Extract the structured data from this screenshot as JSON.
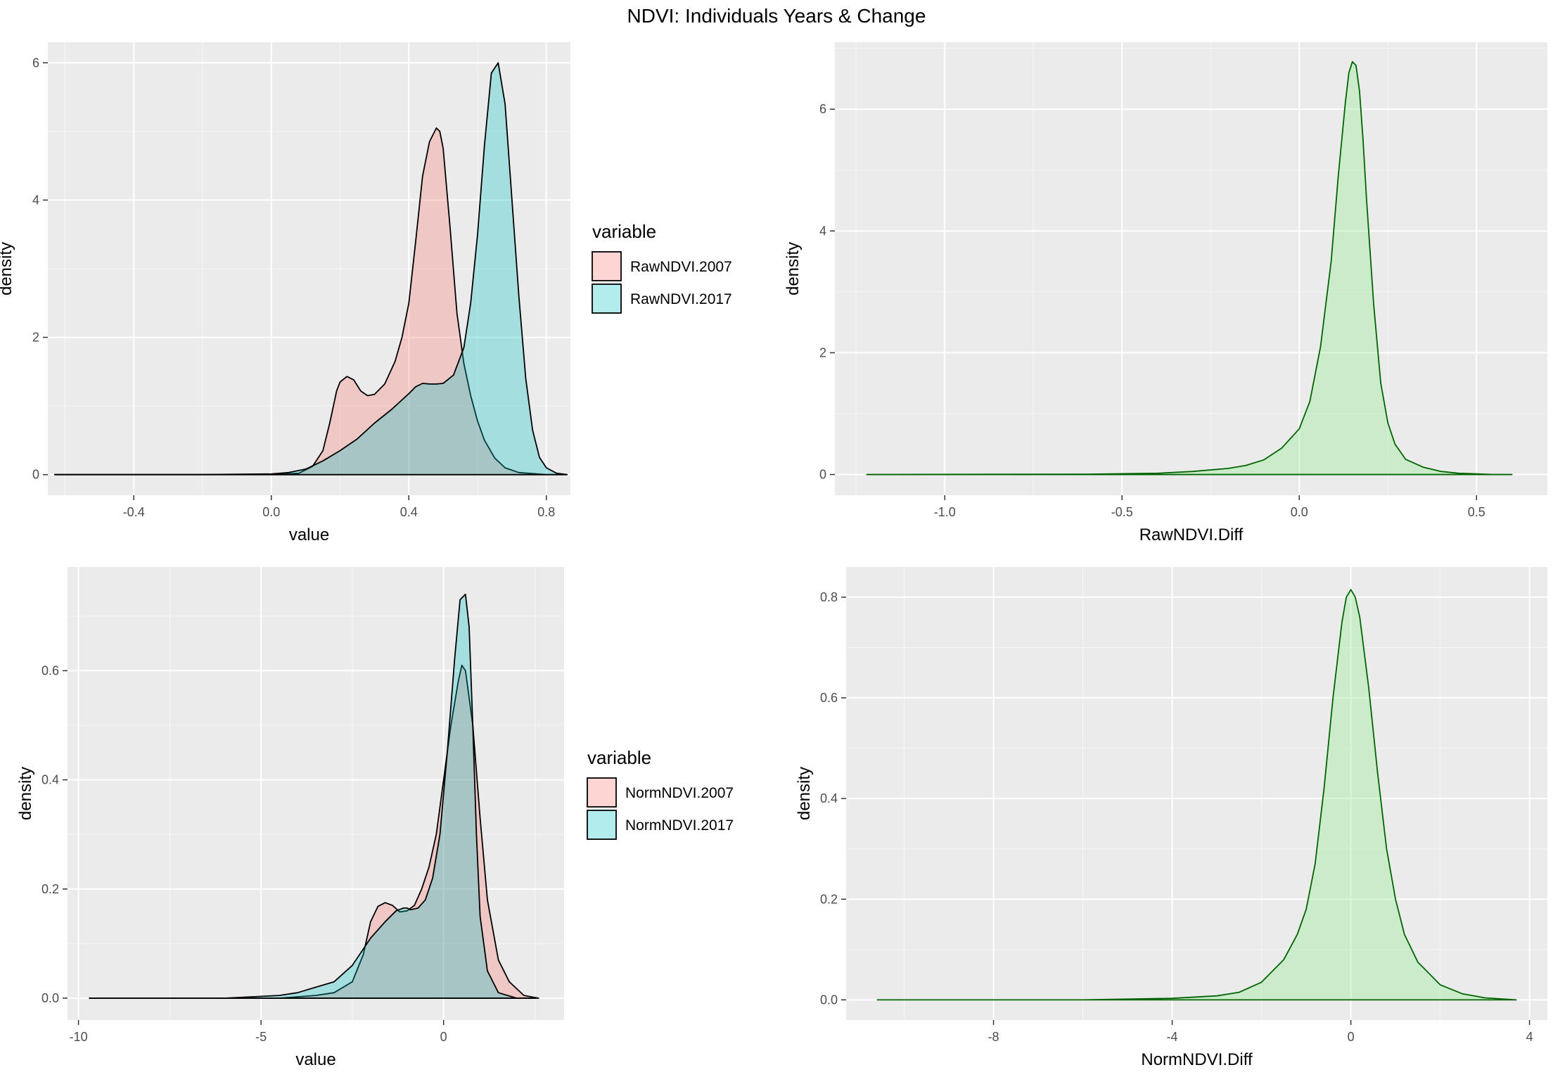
{
  "title": "NDVI: Individuals Years & Change",
  "colors": {
    "panel_bg": "#EBEBEB",
    "grid_major": "#FFFFFF",
    "series_2007": "#F8766D",
    "series_2017": "#00BFC4",
    "diff_fill": "#90EE90",
    "diff_line": "#006400",
    "outline": "#000000",
    "tick_text": "#4D4D4D"
  },
  "chart_data": [
    {
      "type": "area",
      "panel": "top-left",
      "xlabel": "value",
      "ylabel": "density",
      "xlim": [
        -0.65,
        0.87
      ],
      "ylim": [
        -0.3,
        6.3
      ],
      "x_ticks": [
        -0.4,
        0.0,
        0.4,
        0.8
      ],
      "x_tick_labels": [
        "-0.4",
        "0.0",
        "0.4",
        "0.8"
      ],
      "y_ticks": [
        0,
        2,
        4,
        6
      ],
      "y_tick_labels": [
        "0",
        "2",
        "4",
        "6"
      ],
      "legend": {
        "title": "variable",
        "position": "right",
        "entries": [
          "RawNDVI.2007",
          "RawNDVI.2017"
        ]
      },
      "series": [
        {
          "name": "RawNDVI.2007",
          "x": [
            -0.63,
            -0.2,
            0.0,
            0.08,
            0.12,
            0.15,
            0.17,
            0.19,
            0.2,
            0.22,
            0.24,
            0.26,
            0.28,
            0.3,
            0.33,
            0.36,
            0.38,
            0.4,
            0.42,
            0.44,
            0.46,
            0.48,
            0.49,
            0.5,
            0.52,
            0.54,
            0.56,
            0.58,
            0.6,
            0.62,
            0.65,
            0.68,
            0.72,
            0.8,
            0.86
          ],
          "values": [
            0,
            0,
            0.0,
            0.02,
            0.12,
            0.35,
            0.75,
            1.22,
            1.35,
            1.43,
            1.38,
            1.22,
            1.15,
            1.17,
            1.32,
            1.65,
            2.0,
            2.5,
            3.4,
            4.35,
            4.85,
            5.05,
            5.0,
            4.75,
            3.6,
            2.35,
            1.62,
            1.15,
            0.78,
            0.5,
            0.24,
            0.1,
            0.03,
            0.0,
            0
          ]
        },
        {
          "name": "RawNDVI.2017",
          "x": [
            -0.63,
            -0.2,
            0.0,
            0.05,
            0.1,
            0.15,
            0.2,
            0.25,
            0.3,
            0.35,
            0.4,
            0.42,
            0.44,
            0.46,
            0.48,
            0.5,
            0.53,
            0.56,
            0.58,
            0.6,
            0.62,
            0.64,
            0.66,
            0.68,
            0.7,
            0.72,
            0.74,
            0.76,
            0.78,
            0.8,
            0.83,
            0.86
          ],
          "values": [
            0,
            0,
            0.01,
            0.03,
            0.08,
            0.2,
            0.35,
            0.52,
            0.75,
            0.95,
            1.18,
            1.28,
            1.33,
            1.32,
            1.32,
            1.33,
            1.45,
            1.85,
            2.5,
            3.5,
            4.8,
            5.85,
            6.0,
            5.4,
            4.0,
            2.6,
            1.4,
            0.65,
            0.25,
            0.1,
            0.02,
            0
          ]
        }
      ]
    },
    {
      "type": "area",
      "panel": "top-right",
      "xlabel": "RawNDVI.Diff",
      "ylabel": "density",
      "xlim": [
        -1.31,
        0.7
      ],
      "ylim": [
        -0.34,
        7.1
      ],
      "x_ticks": [
        -1.0,
        -0.5,
        0.0,
        0.5
      ],
      "x_tick_labels": [
        "-1.0",
        "-0.5",
        "0.0",
        "0.5"
      ],
      "y_ticks": [
        0,
        2,
        4,
        6
      ],
      "y_tick_labels": [
        "0",
        "2",
        "4",
        "6"
      ],
      "series": [
        {
          "x": [
            -1.22,
            -0.6,
            -0.4,
            -0.3,
            -0.2,
            -0.15,
            -0.1,
            -0.05,
            0.0,
            0.03,
            0.06,
            0.09,
            0.11,
            0.13,
            0.14,
            0.15,
            0.16,
            0.17,
            0.18,
            0.19,
            0.21,
            0.23,
            0.25,
            0.27,
            0.3,
            0.35,
            0.4,
            0.45,
            0.5,
            0.55,
            0.6
          ],
          "values": [
            0,
            0.005,
            0.02,
            0.05,
            0.1,
            0.15,
            0.24,
            0.43,
            0.75,
            1.2,
            2.1,
            3.5,
            4.9,
            6.1,
            6.6,
            6.78,
            6.72,
            6.3,
            5.5,
            4.5,
            2.8,
            1.5,
            0.85,
            0.5,
            0.25,
            0.12,
            0.05,
            0.02,
            0.01,
            0.0,
            0
          ]
        }
      ]
    },
    {
      "type": "area",
      "panel": "bottom-left",
      "xlabel": "value",
      "ylabel": "density",
      "xlim": [
        -10.3,
        3.3
      ],
      "ylim": [
        -0.04,
        0.79
      ],
      "x_ticks": [
        -10,
        -5,
        0
      ],
      "x_tick_labels": [
        "-10",
        "-5",
        "0"
      ],
      "y_ticks": [
        0.0,
        0.2,
        0.4,
        0.6
      ],
      "y_tick_labels": [
        "0.0",
        "0.2",
        "0.4",
        "0.6"
      ],
      "legend": {
        "title": "variable",
        "position": "right",
        "entries": [
          "NormNDVI.2007",
          "NormNDVI.2017"
        ]
      },
      "series": [
        {
          "name": "NormNDVI.2007",
          "x": [
            -9.7,
            -6,
            -4.5,
            -3.5,
            -3.0,
            -2.5,
            -2.2,
            -2.0,
            -1.8,
            -1.6,
            -1.4,
            -1.2,
            -1.0,
            -0.8,
            -0.6,
            -0.4,
            -0.2,
            0.0,
            0.2,
            0.4,
            0.5,
            0.6,
            0.8,
            1.0,
            1.2,
            1.5,
            1.8,
            2.2,
            2.6
          ],
          "values": [
            0,
            0,
            0.0,
            0.005,
            0.01,
            0.03,
            0.08,
            0.14,
            0.168,
            0.175,
            0.17,
            0.158,
            0.16,
            0.17,
            0.2,
            0.24,
            0.3,
            0.4,
            0.5,
            0.58,
            0.61,
            0.6,
            0.5,
            0.33,
            0.18,
            0.07,
            0.03,
            0.005,
            0
          ]
        },
        {
          "name": "NormNDVI.2017",
          "x": [
            -9.7,
            -6,
            -4.5,
            -4.0,
            -3.5,
            -3.0,
            -2.5,
            -2.0,
            -1.6,
            -1.3,
            -1.1,
            -1.0,
            -0.9,
            -0.7,
            -0.5,
            -0.3,
            -0.1,
            0.1,
            0.3,
            0.45,
            0.6,
            0.7,
            0.8,
            0.9,
            1.0,
            1.2,
            1.5,
            2.0,
            2.5
          ],
          "values": [
            0,
            0,
            0.005,
            0.01,
            0.02,
            0.03,
            0.06,
            0.11,
            0.14,
            0.16,
            0.165,
            0.165,
            0.162,
            0.165,
            0.18,
            0.22,
            0.3,
            0.45,
            0.62,
            0.73,
            0.74,
            0.68,
            0.5,
            0.3,
            0.15,
            0.05,
            0.01,
            0.0,
            0
          ]
        }
      ]
    },
    {
      "type": "area",
      "panel": "bottom-right",
      "xlabel": "NormNDVI.Diff",
      "ylabel": "density",
      "xlim": [
        -11.3,
        4.4
      ],
      "ylim": [
        -0.04,
        0.86
      ],
      "x_ticks": [
        -8,
        -4,
        0,
        4
      ],
      "x_tick_labels": [
        "-8",
        "-4",
        "0",
        "4"
      ],
      "y_ticks": [
        0.0,
        0.2,
        0.4,
        0.6,
        0.8
      ],
      "y_tick_labels": [
        "0.0",
        "0.2",
        "0.4",
        "0.6",
        "0.8"
      ],
      "series": [
        {
          "x": [
            -10.6,
            -6.0,
            -4.0,
            -3.0,
            -2.5,
            -2.0,
            -1.5,
            -1.2,
            -1.0,
            -0.8,
            -0.6,
            -0.4,
            -0.2,
            -0.1,
            0.0,
            0.1,
            0.2,
            0.4,
            0.6,
            0.8,
            1.0,
            1.2,
            1.5,
            2.0,
            2.5,
            3.0,
            3.7
          ],
          "values": [
            0,
            0.0,
            0.003,
            0.008,
            0.015,
            0.035,
            0.08,
            0.13,
            0.18,
            0.27,
            0.42,
            0.6,
            0.75,
            0.8,
            0.815,
            0.8,
            0.76,
            0.62,
            0.45,
            0.3,
            0.2,
            0.13,
            0.075,
            0.03,
            0.012,
            0.004,
            0
          ]
        }
      ]
    }
  ]
}
